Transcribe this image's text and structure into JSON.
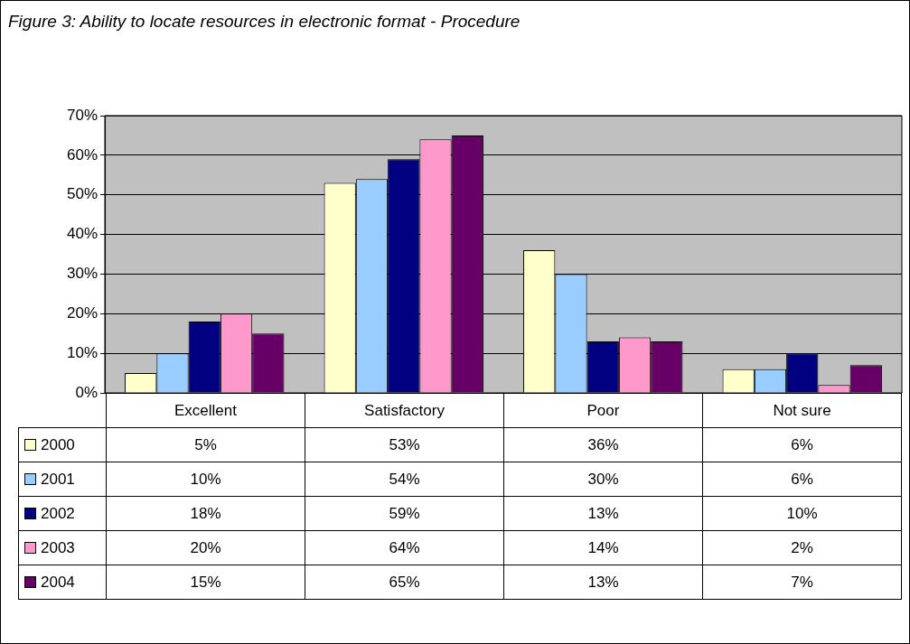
{
  "chart_data": {
    "type": "bar",
    "title": "Figure 3: Ability to locate resources in electronic format - Procedure",
    "categories": [
      "Excellent",
      "Satisfactory",
      "Poor",
      "Not sure"
    ],
    "series": [
      {
        "name": "2000",
        "color": "#ffffcc",
        "values": [
          5,
          53,
          36,
          6
        ],
        "value_labels": [
          "5%",
          "53%",
          "36%",
          "6%"
        ]
      },
      {
        "name": "2001",
        "color": "#99ccff",
        "values": [
          10,
          54,
          30,
          6
        ],
        "value_labels": [
          "10%",
          "54%",
          "30%",
          "6%"
        ]
      },
      {
        "name": "2002",
        "color": "#000080",
        "values": [
          18,
          59,
          13,
          10
        ],
        "value_labels": [
          "18%",
          "59%",
          "13%",
          "10%"
        ]
      },
      {
        "name": "2003",
        "color": "#ff99cc",
        "values": [
          20,
          64,
          14,
          2
        ],
        "value_labels": [
          "20%",
          "64%",
          "14%",
          "2%"
        ]
      },
      {
        "name": "2004",
        "color": "#660066",
        "values": [
          15,
          65,
          13,
          7
        ],
        "value_labels": [
          "15%",
          "65%",
          "13%",
          "7%"
        ]
      }
    ],
    "ylim": [
      0,
      70
    ],
    "yticks": [
      {
        "value": 0,
        "label": "0%"
      },
      {
        "value": 10,
        "label": "10%"
      },
      {
        "value": 20,
        "label": "20%"
      },
      {
        "value": 30,
        "label": "30%"
      },
      {
        "value": 40,
        "label": "40%"
      },
      {
        "value": 50,
        "label": "50%"
      },
      {
        "value": 60,
        "label": "60%"
      },
      {
        "value": 70,
        "label": "70%"
      }
    ],
    "grid": "y",
    "legend": "bottom"
  }
}
